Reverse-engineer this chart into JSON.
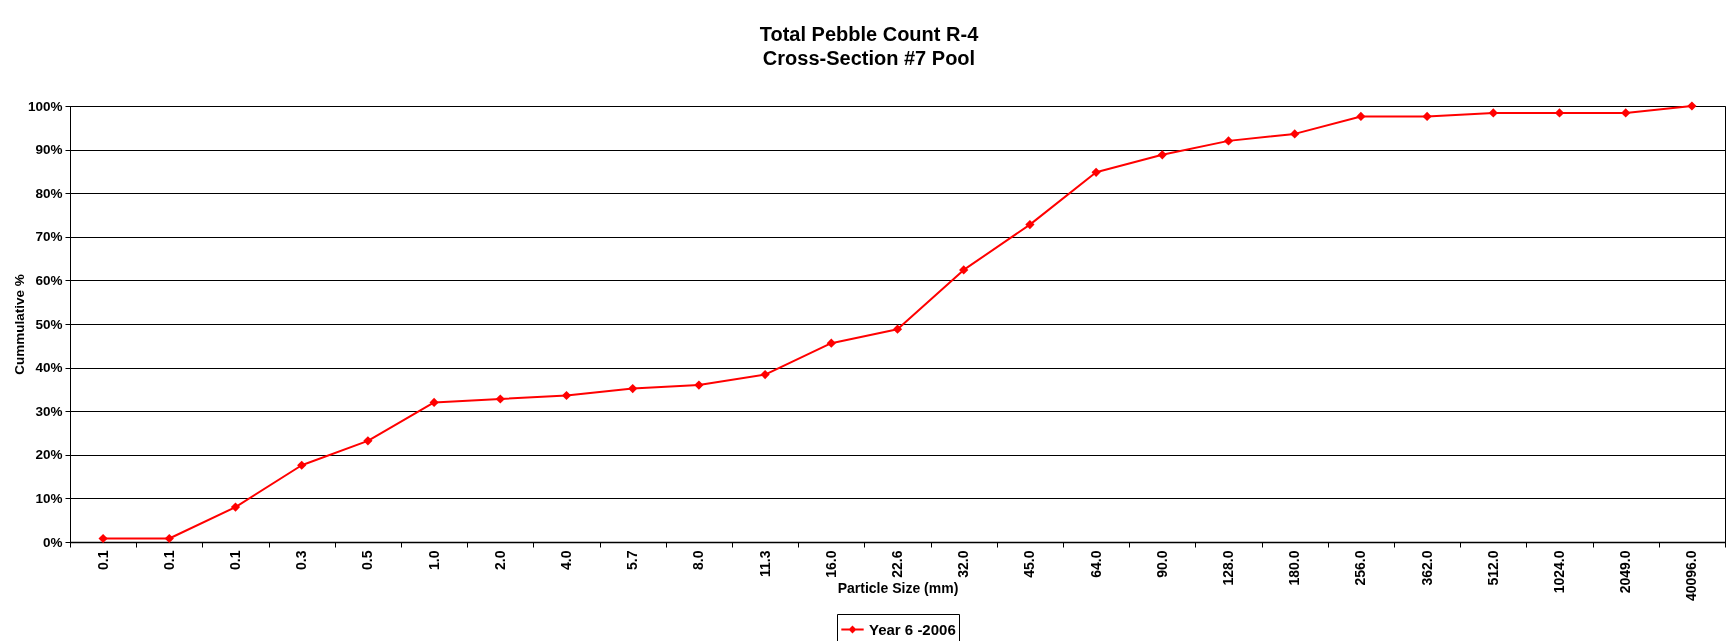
{
  "chart_data": {
    "type": "line",
    "title": "Total Pebble Count R-4",
    "subtitle": "Cross-Section #7 Pool",
    "xlabel": "Particle Size (mm)",
    "ylabel": "Cummulative %",
    "categories": [
      "0.1",
      "0.1",
      "0.1",
      "0.3",
      "0.5",
      "1.0",
      "2.0",
      "4.0",
      "5.7",
      "8.0",
      "11.3",
      "16.0",
      "22.6",
      "32.0",
      "45.0",
      "64.0",
      "90.0",
      "128.0",
      "180.0",
      "256.0",
      "362.0",
      "512.0",
      "1024.0",
      "2049.0",
      "40096.0"
    ],
    "series": [
      {
        "name": "Year 6 -2006",
        "color": "#ff0000",
        "values": [
          0.8,
          0.8,
          8.0,
          17.6,
          23.2,
          32.0,
          32.8,
          33.6,
          35.2,
          36.0,
          38.4,
          45.6,
          48.8,
          62.4,
          72.8,
          84.8,
          88.8,
          92.0,
          93.6,
          97.6,
          97.6,
          98.4,
          98.4,
          98.4,
          100
        ]
      }
    ],
    "ylim": [
      0,
      100
    ],
    "yticks": [
      {
        "value": 0,
        "label": "0%"
      },
      {
        "value": 10,
        "label": "10%"
      },
      {
        "value": 20,
        "label": "20%"
      },
      {
        "value": 30,
        "label": "30%"
      },
      {
        "value": 40,
        "label": "40%"
      },
      {
        "value": 50,
        "label": "50%"
      },
      {
        "value": 60,
        "label": "60%"
      },
      {
        "value": 70,
        "label": "70%"
      },
      {
        "value": 80,
        "label": "80%"
      },
      {
        "value": 90,
        "label": "90%"
      },
      {
        "value": 100,
        "label": "100%"
      }
    ],
    "grid": "y",
    "legend": "bottom",
    "marker": "diamond",
    "line_style": "solid"
  }
}
